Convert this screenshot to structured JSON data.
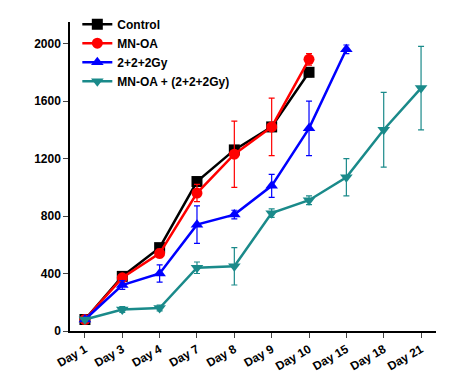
{
  "chart_data": {
    "type": "line",
    "categories": [
      "Day 1",
      "Day 3",
      "Day 4",
      "Day 7",
      "Day 8",
      "Day 9",
      "Day 10",
      "Day 15",
      "Day 18",
      "Day 21"
    ],
    "series": [
      {
        "name": "Control",
        "color": "#000000",
        "marker": "square",
        "line_style": "solid",
        "values": [
          80,
          380,
          580,
          1040,
          1260,
          1420,
          1800,
          null,
          null,
          null
        ],
        "errors": [
          10,
          20,
          20,
          20,
          30,
          30,
          30,
          null,
          null,
          null
        ]
      },
      {
        "name": "MN-OA",
        "color": "#ff0000",
        "marker": "circle",
        "line_style": "solid",
        "values": [
          80,
          370,
          540,
          960,
          1230,
          1420,
          1890,
          null,
          null,
          null
        ],
        "errors": [
          10,
          20,
          30,
          60,
          230,
          200,
          40,
          null,
          null,
          null
        ]
      },
      {
        "name": "2+2+2Gy",
        "color": "#0000ff",
        "marker": "triangle-up",
        "line_style": "solid",
        "values": [
          80,
          320,
          400,
          740,
          810,
          1010,
          1410,
          1960,
          null,
          null
        ],
        "errors": [
          10,
          30,
          60,
          130,
          30,
          80,
          190,
          30,
          null,
          null
        ]
      },
      {
        "name": "MN-OA + (2+2+2Gy)",
        "color": "#1a8a8a",
        "marker": "triangle-down",
        "line_style": "solid",
        "values": [
          80,
          150,
          160,
          440,
          450,
          820,
          910,
          1070,
          1400,
          1690
        ],
        "errors": [
          10,
          20,
          20,
          40,
          130,
          30,
          30,
          130,
          260,
          290
        ]
      }
    ],
    "ylim": [
      0,
      2150
    ],
    "yticks": [
      0,
      400,
      800,
      1200,
      1600,
      2000
    ],
    "grid": false,
    "legend": "top-left"
  }
}
